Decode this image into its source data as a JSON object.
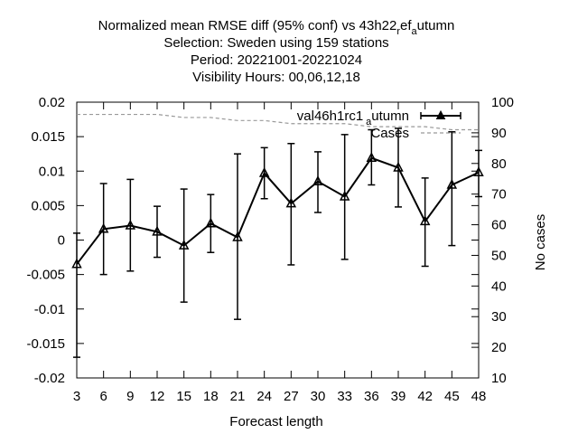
{
  "chart_data": {
    "type": "line",
    "title_lines": [
      "Normalized mean RMSE diff (95% conf) vs 43h22",
      "Selection: Sweden using   159 stations",
      "Period: 20221001-20221024",
      "Visibility   Hours: 00,06,12,18"
    ],
    "title_subscript_parts": {
      "line0_r": "r",
      "line0_ef": "ef",
      "line0_a": "a",
      "line0_utumn": "utumn"
    },
    "xlabel": "Forecast length",
    "ylabel_right": "No cases",
    "x": [
      3,
      6,
      9,
      12,
      15,
      18,
      21,
      24,
      27,
      30,
      33,
      36,
      39,
      42,
      45,
      48
    ],
    "x_tick_labels": [
      "3",
      "6",
      "9",
      "12",
      "15",
      "18",
      "21",
      "24",
      "27",
      "30",
      "33",
      "36",
      "39",
      "42",
      "45",
      "48"
    ],
    "ylim": [
      -0.02,
      0.02
    ],
    "y_ticks": [
      "-0.02",
      "-0.015",
      "-0.01",
      "-0.005",
      "0",
      "0.005",
      "0.01",
      "0.015",
      "0.02"
    ],
    "y2lim": [
      10,
      100
    ],
    "y2_ticks": [
      "10",
      "20",
      "30",
      "40",
      "50",
      "60",
      "70",
      "80",
      "90",
      "100"
    ],
    "series": [
      {
        "name": "val46h1rc1",
        "name_sub": "a",
        "name_suffix": "utumn",
        "values": [
          -0.0035,
          0.0016,
          0.0021,
          0.0012,
          -0.0008,
          0.0024,
          0.0004,
          0.0097,
          0.0053,
          0.0085,
          0.0063,
          0.0119,
          0.0105,
          0.0027,
          0.008,
          0.0098
        ],
        "err_low": [
          -0.017,
          -0.005,
          -0.0045,
          -0.0025,
          -0.009,
          -0.0018,
          -0.0115,
          0.006,
          -0.0036,
          0.004,
          -0.0028,
          0.008,
          0.0048,
          -0.0038,
          -0.0008,
          0.0063
        ],
        "err_high": [
          0.001,
          0.0082,
          0.0088,
          0.0049,
          0.0074,
          0.0066,
          0.0125,
          0.0134,
          0.014,
          0.0128,
          0.0153,
          0.016,
          0.0162,
          0.009,
          0.0157,
          0.013
        ],
        "color": "#000000",
        "axis": "left"
      },
      {
        "name": "Cases",
        "values": [
          96,
          96,
          96,
          96,
          95,
          95,
          94,
          94,
          93,
          93,
          93,
          92,
          92,
          92,
          91,
          91
        ],
        "color": "#999999",
        "style": "dashed",
        "axis": "right"
      }
    ],
    "grid": false,
    "legend_position": "top-right"
  }
}
